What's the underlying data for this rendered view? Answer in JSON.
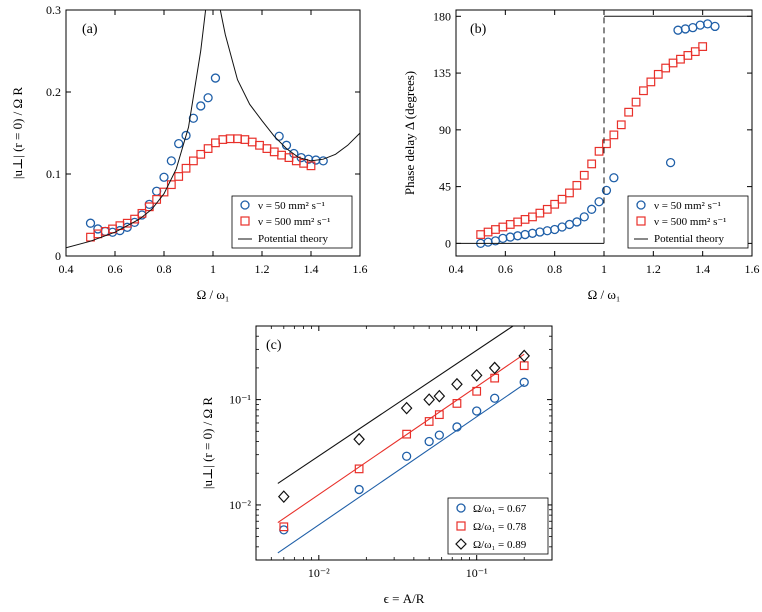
{
  "colors": {
    "blue": "#1f5fa8",
    "red": "#e8302a",
    "black": "#111111"
  },
  "chart_data": [
    {
      "type": "scatter",
      "panel_label": "(a)",
      "xlabel": "Ω / ω₁",
      "ylabel": "|u⊥| (r = 0) / Ω R",
      "xlim": [
        0.4,
        1.6
      ],
      "ylim": [
        0,
        0.3
      ],
      "xticks": [
        0.4,
        0.6,
        0.8,
        1,
        1.2,
        1.4,
        1.6
      ],
      "yticks": [
        0,
        0.1,
        0.2,
        0.3
      ],
      "xtick_labels": [
        "0.4",
        "0.6",
        "0.8",
        "1",
        "1.2",
        "1.4",
        "1.6"
      ],
      "ytick_labels": [
        "0",
        "0.1",
        "0.2",
        "0.3"
      ],
      "legend": {
        "position": "bottom-right",
        "entries": [
          "ν = 50 mm² s⁻¹",
          "ν = 500 mm² s⁻¹",
          "Potential theory"
        ]
      },
      "series": [
        {
          "name": "ν = 50 mm² s⁻¹",
          "marker": "circle",
          "color": "blue",
          "x": [
            0.5,
            0.53,
            0.56,
            0.59,
            0.62,
            0.65,
            0.68,
            0.71,
            0.74,
            0.77,
            0.8,
            0.83,
            0.86,
            0.89,
            0.92,
            0.95,
            0.98,
            1.01,
            1.27,
            1.3,
            1.33,
            1.36,
            1.39,
            1.42,
            1.45
          ],
          "y": [
            0.04,
            0.033,
            0.03,
            0.029,
            0.031,
            0.035,
            0.041,
            0.05,
            0.063,
            0.079,
            0.096,
            0.116,
            0.137,
            0.147,
            0.168,
            0.183,
            0.193,
            0.217,
            0.146,
            0.135,
            0.125,
            0.12,
            0.118,
            0.117,
            0.116
          ]
        },
        {
          "name": "ν = 500 mm² s⁻¹",
          "marker": "square",
          "color": "red",
          "x": [
            0.5,
            0.53,
            0.56,
            0.59,
            0.62,
            0.65,
            0.68,
            0.71,
            0.74,
            0.77,
            0.8,
            0.83,
            0.86,
            0.89,
            0.92,
            0.95,
            0.98,
            1.01,
            1.04,
            1.07,
            1.1,
            1.13,
            1.16,
            1.19,
            1.22,
            1.25,
            1.28,
            1.31,
            1.34,
            1.37,
            1.4
          ],
          "y": [
            0.023,
            0.027,
            0.03,
            0.033,
            0.037,
            0.04,
            0.045,
            0.052,
            0.06,
            0.069,
            0.078,
            0.087,
            0.097,
            0.107,
            0.116,
            0.124,
            0.131,
            0.138,
            0.142,
            0.143,
            0.143,
            0.142,
            0.139,
            0.135,
            0.131,
            0.127,
            0.123,
            0.12,
            0.116,
            0.113,
            0.11
          ]
        },
        {
          "name": "Potential theory",
          "marker": "line",
          "color": "black",
          "x": [
            0.4,
            0.5,
            0.6,
            0.7,
            0.75,
            0.8,
            0.85,
            0.9,
            0.95,
            0.97,
            1.03,
            1.05,
            1.1,
            1.15,
            1.2,
            1.25,
            1.3,
            1.35,
            1.4,
            1.45,
            1.5,
            1.55,
            1.6
          ],
          "y": [
            0.01,
            0.018,
            0.029,
            0.045,
            0.057,
            0.076,
            0.106,
            0.157,
            0.25,
            0.3,
            0.3,
            0.27,
            0.215,
            0.185,
            0.165,
            0.146,
            0.131,
            0.12,
            0.116,
            0.118,
            0.124,
            0.135,
            0.15
          ]
        }
      ]
    },
    {
      "type": "scatter",
      "panel_label": "(b)",
      "xlabel": "Ω / ω₁",
      "ylabel": "Phase delay  Δ (degrees)",
      "xlim": [
        0.4,
        1.6
      ],
      "ylim": [
        -10,
        185
      ],
      "xticks": [
        0.4,
        0.6,
        0.8,
        1,
        1.2,
        1.4,
        1.6
      ],
      "yticks": [
        0,
        45,
        90,
        135,
        180
      ],
      "xtick_labels": [
        "0.4",
        "0.6",
        "0.8",
        "1",
        "1.2",
        "1.4",
        "1.6"
      ],
      "ytick_labels": [
        "0",
        "45",
        "90",
        "135",
        "180"
      ],
      "legend": {
        "position": "bottom-right",
        "entries": [
          "ν = 50 mm² s⁻¹",
          "ν = 500 mm² s⁻¹",
          "Potential theory"
        ]
      },
      "series": [
        {
          "name": "ν = 50 mm² s⁻¹",
          "marker": "circle",
          "color": "blue",
          "x": [
            0.5,
            0.53,
            0.56,
            0.59,
            0.62,
            0.65,
            0.68,
            0.71,
            0.74,
            0.77,
            0.8,
            0.83,
            0.86,
            0.89,
            0.92,
            0.95,
            0.98,
            1.01,
            1.04,
            1.27,
            1.3,
            1.33,
            1.36,
            1.39,
            1.42,
            1.45
          ],
          "y": [
            0,
            1,
            2,
            4,
            5,
            6,
            7,
            8,
            9,
            10,
            11,
            13,
            15,
            17,
            21,
            27,
            33,
            42,
            52,
            64,
            169,
            170,
            171,
            173,
            174,
            172
          ]
        },
        {
          "name": "ν = 500 mm² s⁻¹",
          "marker": "square",
          "color": "red",
          "x": [
            0.5,
            0.53,
            0.56,
            0.59,
            0.62,
            0.65,
            0.68,
            0.71,
            0.74,
            0.77,
            0.8,
            0.83,
            0.86,
            0.89,
            0.92,
            0.95,
            0.98,
            1.01,
            1.04,
            1.07,
            1.1,
            1.13,
            1.16,
            1.19,
            1.22,
            1.25,
            1.28,
            1.31,
            1.34,
            1.37,
            1.4
          ],
          "y": [
            7,
            9,
            11,
            13,
            15,
            17,
            19,
            21,
            24,
            27,
            31,
            35,
            40,
            46,
            54,
            63,
            73,
            79,
            86,
            94,
            104,
            112,
            121,
            128,
            134,
            139,
            143,
            146,
            149,
            152,
            156
          ]
        },
        {
          "name": "Potential theory",
          "marker": "line",
          "color": "black",
          "x": [
            0.4,
            1.0,
            1.0,
            1.6
          ],
          "y": [
            0,
            0,
            180,
            180
          ]
        }
      ]
    },
    {
      "type": "scatter",
      "panel_label": "(c)",
      "xlabel": "ϵ = A/R",
      "ylabel": "|u⊥| (r = 0) / Ω R",
      "xscale": "log",
      "yscale": "log",
      "xlim": [
        0.004,
        0.3
      ],
      "ylim": [
        0.003,
        0.5
      ],
      "xticks": [
        0.01,
        0.1
      ],
      "yticks": [
        0.01,
        0.1
      ],
      "xtick_labels": [
        "10⁻²",
        "10⁻¹"
      ],
      "ytick_labels": [
        "10⁻²",
        "10⁻¹"
      ],
      "legend": {
        "position": "bottom-right",
        "entries": [
          "Ω/ω₁ = 0.67",
          "Ω/ω₁ = 0.78",
          "Ω/ω₁ = 0.89"
        ]
      },
      "series": [
        {
          "name": "Ω/ω₁ = 0.67",
          "marker": "circle",
          "color": "blue",
          "x": [
            0.006,
            0.018,
            0.036,
            0.05,
            0.058,
            0.075,
            0.1,
            0.13,
            0.2
          ],
          "y": [
            0.0058,
            0.014,
            0.029,
            0.04,
            0.046,
            0.055,
            0.078,
            0.103,
            0.146
          ],
          "fit": {
            "x": [
              0.0055,
              0.2
            ],
            "y": [
              0.0035,
              0.14
            ]
          }
        },
        {
          "name": "Ω/ω₁ = 0.78",
          "marker": "square",
          "color": "red",
          "x": [
            0.006,
            0.018,
            0.036,
            0.05,
            0.058,
            0.075,
            0.1,
            0.13,
            0.2
          ],
          "y": [
            0.0062,
            0.022,
            0.047,
            0.062,
            0.072,
            0.092,
            0.12,
            0.16,
            0.21
          ],
          "fit": {
            "x": [
              0.0055,
              0.2
            ],
            "y": [
              0.0068,
              0.27
            ]
          }
        },
        {
          "name": "Ω/ω₁ = 0.89",
          "marker": "diamond",
          "color": "black",
          "x": [
            0.006,
            0.018,
            0.036,
            0.05,
            0.058,
            0.075,
            0.1,
            0.13,
            0.2
          ],
          "y": [
            0.012,
            0.042,
            0.083,
            0.1,
            0.108,
            0.14,
            0.17,
            0.2,
            0.26
          ],
          "fit": {
            "x": [
              0.0055,
              0.17
            ],
            "y": [
              0.016,
              0.5
            ]
          }
        }
      ]
    }
  ]
}
